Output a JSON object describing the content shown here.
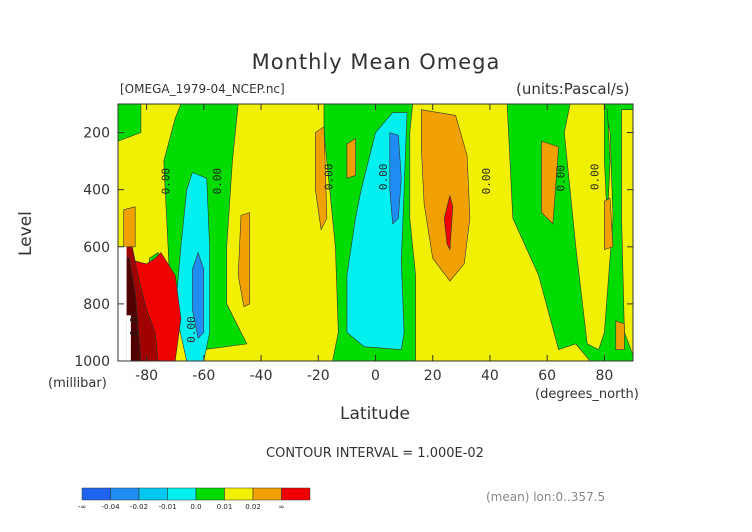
{
  "title": "Monthly Mean Omega",
  "file_label": "[OMEGA_1979-04_NCEP.nc]",
  "units_label": "(units:Pascal/s)",
  "contour_interval": "CONTOUR INTERVAL = 1.000E-02",
  "mean_note": "(mean) lon:0..357.5",
  "chart_data": {
    "type": "heatmap",
    "title": "Monthly Mean Omega",
    "xlabel": "Latitude",
    "xunit": "(degrees_north)",
    "ylabel": "Level",
    "yunit": "(millibar)",
    "xlim": [
      -90,
      90
    ],
    "ylim": [
      1000,
      100
    ],
    "x_ticks": [
      -80,
      -60,
      -40,
      -20,
      0,
      20,
      40,
      60,
      80
    ],
    "y_ticks": [
      200,
      400,
      600,
      800,
      1000
    ],
    "contour_labels": [
      {
        "text": "0.00",
        "lat": -72,
        "level": 370
      },
      {
        "text": "0.00",
        "lat": -54,
        "level": 370
      },
      {
        "text": "0.00",
        "lat": -15,
        "level": 355
      },
      {
        "text": "0.00",
        "lat": 4,
        "level": 355
      },
      {
        "text": "0.00",
        "lat": 40,
        "level": 370
      },
      {
        "text": "0.00",
        "lat": 66,
        "level": 360
      },
      {
        "text": "0.00",
        "lat": 78,
        "level": 355
      },
      {
        "text": "0.00",
        "lat": -63,
        "level": 890
      },
      {
        "text": "-0.0",
        "lat": -83,
        "level": 890
      }
    ],
    "legend": {
      "labels": [
        "-∞",
        "-0.04",
        "-0.02",
        "-0.01",
        "0.0",
        "0.01",
        "0.02",
        "∞"
      ],
      "colors": [
        "#1e64f0",
        "#1e8cf0",
        "#00c8f0",
        "#00f0f0",
        "#00dc00",
        "#f0f000",
        "#f0a000",
        "#f00000"
      ]
    },
    "palette": {
      "dark_blue": "#1e8cf0",
      "cyan": "#00f0f0",
      "green": "#00dc00",
      "yellow": "#f0f000",
      "orange": "#f0a000",
      "red": "#f00000",
      "dark_red": "#a00000",
      "darker_red": "#500000"
    }
  }
}
